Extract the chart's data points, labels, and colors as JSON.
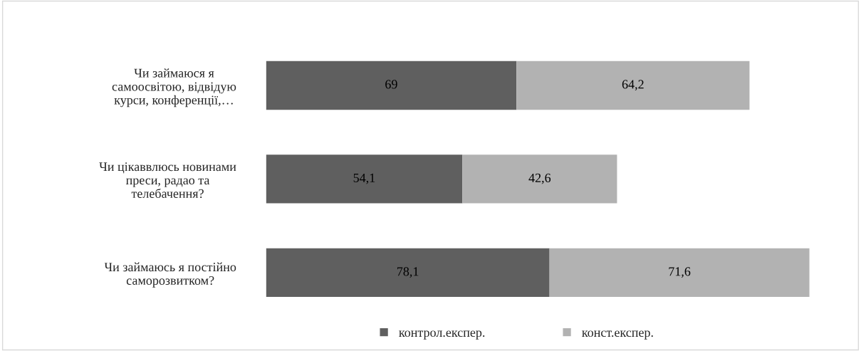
{
  "chart_data": {
    "type": "bar",
    "orientation": "horizontal",
    "stacked": true,
    "legend": "bottom",
    "grid": false,
    "categories": [
      "Чи займаюся я\nсамоосвітою, відвідую\nкурси, конференції,…",
      "Чи цікаввлюсь новинами\nпреси, радао та\nтелебачення?",
      "Чи займаюсь я постійно\nсаморозвитком?"
    ],
    "series": [
      {
        "name": "контрол.експер.",
        "color": "#5f5f5f",
        "values": [
          69,
          54.1,
          78.1
        ],
        "value_labels": [
          "69",
          "54,1",
          "78,1"
        ]
      },
      {
        "name": "конст.експер.",
        "color": "#b2b2b2",
        "values": [
          64.2,
          42.6,
          71.6
        ],
        "value_labels": [
          "64,2",
          "42,6",
          "71,6"
        ]
      }
    ]
  }
}
